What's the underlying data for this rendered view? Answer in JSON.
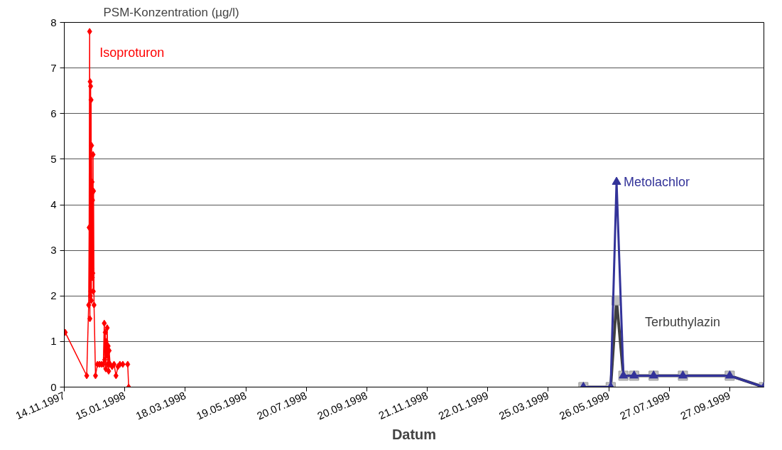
{
  "chart_data": {
    "type": "line",
    "ylabel": "PSM-Konzentration (µg/l)",
    "xlabel": "Datum",
    "xlim": [
      "1997-11-14",
      "1999-11-01"
    ],
    "xticks": [
      {
        "value": "1997-11-14",
        "label": "14.11.1997"
      },
      {
        "value": "1998-01-15",
        "label": "15.01.1998"
      },
      {
        "value": "1998-03-18",
        "label": "18.03.1998"
      },
      {
        "value": "1998-05-19",
        "label": "19.05.1998"
      },
      {
        "value": "1998-07-20",
        "label": "20.07.1998"
      },
      {
        "value": "1998-09-20",
        "label": "20.09.1998"
      },
      {
        "value": "1998-11-21",
        "label": "21.11.1998"
      },
      {
        "value": "1999-01-22",
        "label": "22.01.1999"
      },
      {
        "value": "1999-03-25",
        "label": "25.03.1999"
      },
      {
        "value": "1999-05-26",
        "label": "26.05.1999"
      },
      {
        "value": "1999-07-27",
        "label": "27.07.1999"
      },
      {
        "value": "1999-09-27",
        "label": "27.09.1999"
      }
    ],
    "ylim": [
      0,
      8
    ],
    "yticks": [
      0,
      1,
      2,
      3,
      4,
      5,
      6,
      7,
      8
    ],
    "grid": "y",
    "series": [
      {
        "name": "Isoproturon",
        "color": "#ff0000",
        "marker": "diamond",
        "x": [
          "1997-11-15",
          "1997-12-07",
          "1997-12-09",
          "1997-12-09T12:00",
          "1997-12-10",
          "1997-12-10T06:00",
          "1997-12-10T12:00",
          "1997-12-10T18:00",
          "1997-12-11",
          "1997-12-11T06:00",
          "1997-12-11T12:00",
          "1997-12-11T18:00",
          "1997-12-12",
          "1997-12-12T06:00",
          "1997-12-12T12:00",
          "1997-12-12T18:00",
          "1997-12-13",
          "1997-12-13T06:00",
          "1997-12-13T12:00",
          "1997-12-13T18:00",
          "1997-12-14",
          "1997-12-14T12:00",
          "1997-12-16",
          "1997-12-18",
          "1997-12-20",
          "1997-12-22",
          "1997-12-24",
          "1997-12-25",
          "1997-12-25T12:00",
          "1997-12-26",
          "1997-12-26T12:00",
          "1997-12-27",
          "1997-12-27T12:00",
          "1997-12-28",
          "1997-12-28T12:00",
          "1997-12-29",
          "1997-12-29T12:00",
          "1997-12-30",
          "1997-12-31",
          "1998-01-02",
          "1998-01-04",
          "1998-01-06",
          "1998-01-08",
          "1998-01-10",
          "1998-01-13",
          "1998-01-18",
          "1998-01-19"
        ],
        "values": [
          1.2,
          0.25,
          1.8,
          3.5,
          7.8,
          1.5,
          6.7,
          2.0,
          6.6,
          2.1,
          6.3,
          1.9,
          5.3,
          2.6,
          4.5,
          2.4,
          4.1,
          2.5,
          5.1,
          2.1,
          4.3,
          1.8,
          0.25,
          0.5,
          0.5,
          0.5,
          0.5,
          1.4,
          0.6,
          1.2,
          0.4,
          1.0,
          0.7,
          1.3,
          0.5,
          0.9,
          0.35,
          0.8,
          0.5,
          0.45,
          0.5,
          0.25,
          0.45,
          0.5,
          0.5,
          0.5,
          0
        ]
      },
      {
        "name": "Terbuthylazin",
        "color": "#404040",
        "marker": "square",
        "x": [
          "1999-04-30",
          "1999-05-28",
          "1999-06-03",
          "1999-06-10",
          "1999-06-21",
          "1999-07-11",
          "1999-08-10",
          "1999-09-27",
          "1999-11-01"
        ],
        "values": [
          0,
          0,
          1.9,
          0.25,
          0.25,
          0.25,
          0.25,
          0.25,
          0
        ]
      },
      {
        "name": "Metolachlor",
        "color": "#333399",
        "marker": "triangle",
        "x": [
          "1999-04-30",
          "1999-05-28",
          "1999-06-03",
          "1999-06-10",
          "1999-06-21",
          "1999-07-11",
          "1999-08-10",
          "1999-09-27",
          "1999-11-01"
        ],
        "values": [
          0,
          0,
          4.5,
          0.25,
          0.25,
          0.25,
          0.25,
          0.25,
          0
        ]
      }
    ]
  }
}
